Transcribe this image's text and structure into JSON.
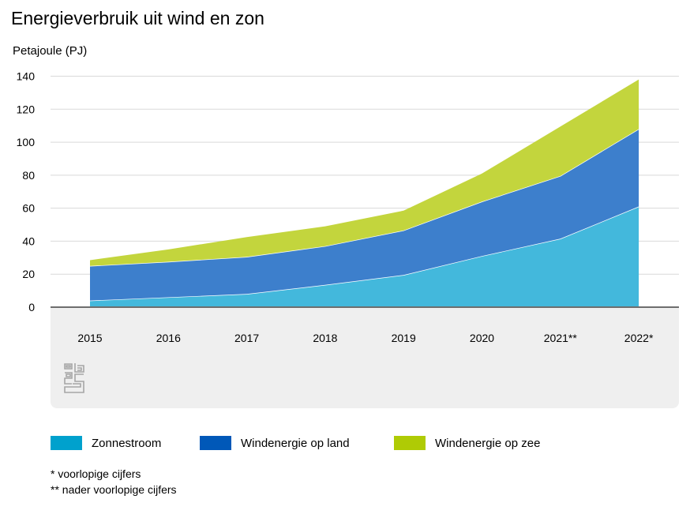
{
  "chart_data": {
    "type": "area",
    "stacked": true,
    "title": "Energieverbruik uit wind en zon",
    "ylabel": "Petajoule (PJ)",
    "xlabel": "",
    "categories": [
      "2015",
      "2016",
      "2017",
      "2018",
      "2019",
      "2020",
      "2021**",
      "2022*"
    ],
    "ylim": [
      0,
      140
    ],
    "yticks": [
      0,
      20,
      40,
      60,
      80,
      100,
      120,
      140
    ],
    "grid": true,
    "legend_position": "bottom",
    "series": [
      {
        "name": "Zonnestroom",
        "color": "#43b8dc",
        "values": [
          4,
          6,
          8,
          13.5,
          19.5,
          31,
          41.5,
          61
        ]
      },
      {
        "name": "Windenergie op land",
        "color": "#3d7fcc",
        "values": [
          21,
          21.5,
          22.5,
          23.5,
          27,
          33,
          38,
          47
        ]
      },
      {
        "name": "Windenergie op zee",
        "color": "#c3d53d",
        "values": [
          3.5,
          7.5,
          12,
          12,
          12,
          17,
          30,
          30
        ]
      }
    ]
  },
  "legend": [
    {
      "label": "Zonnestroom",
      "color": "#00a1cd"
    },
    {
      "label": "Windenergie op land",
      "color": "#0058b8"
    },
    {
      "label": "Windenergie op zee",
      "color": "#afcb05"
    }
  ],
  "notes": [
    "* voorlopige cijfers",
    "** nader voorlopige cijfers"
  ],
  "logo_icon": "cbs-logo-icon"
}
